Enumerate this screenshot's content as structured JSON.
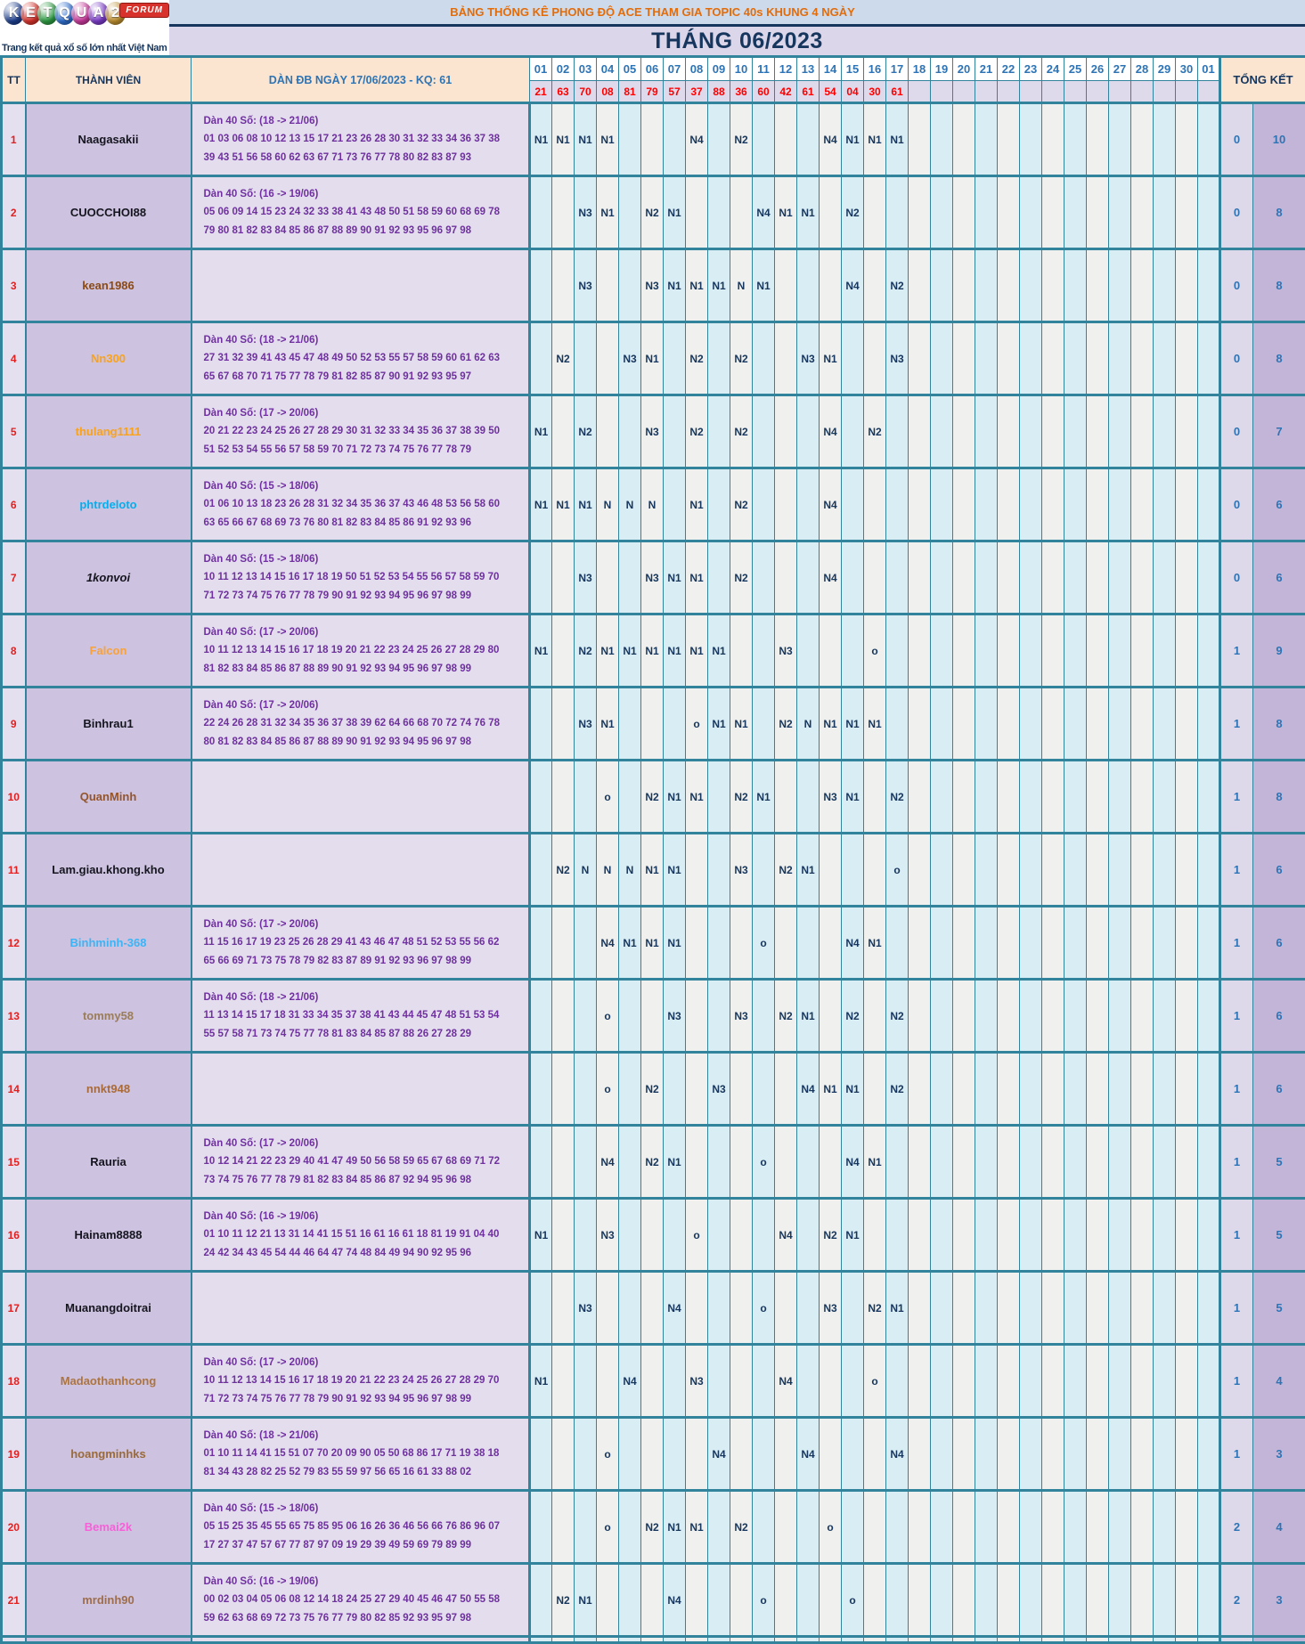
{
  "logo": {
    "letters": [
      {
        "ch": "K",
        "color": "#1d3f8e"
      },
      {
        "ch": "E",
        "color": "#d7332c"
      },
      {
        "ch": "T",
        "color": "#2e9b43"
      },
      {
        "ch": "Q",
        "color": "#2f6fd0"
      },
      {
        "ch": "U",
        "color": "#c8399b"
      },
      {
        "ch": "A",
        "color": "#7a3bc8"
      },
      {
        "ch": "2",
        "color": "#bd8f2e"
      }
    ],
    "badge": "FORUM",
    "tagline": "Trang kết quả xổ số lớn nhất Việt Nam"
  },
  "banner": {
    "text": "BẢNG THỐNG KÊ PHONG ĐỘ ACE THAM GIA TOPIC 40s KHUNG 4 NGÀY"
  },
  "month": {
    "text": "THÁNG 06/2023"
  },
  "headers": {
    "tt": "TT",
    "member": "THÀNH VIÊN",
    "dan": "DÀN ĐB NGÀY 17/06/2023 - KQ: 61",
    "total": "TỔNG KẾT"
  },
  "days": [
    "01",
    "02",
    "03",
    "04",
    "05",
    "06",
    "07",
    "08",
    "09",
    "10",
    "11",
    "12",
    "13",
    "14",
    "15",
    "16",
    "17",
    "18",
    "19",
    "20",
    "21",
    "22",
    "23",
    "24",
    "25",
    "26",
    "27",
    "28",
    "29",
    "30",
    "01"
  ],
  "kq_results": [
    "21",
    "63",
    "70",
    "08",
    "81",
    "79",
    "57",
    "37",
    "88",
    "36",
    "60",
    "42",
    "61",
    "54",
    "04",
    "30",
    "61"
  ],
  "colors": {
    "grid_teal": "#31849b",
    "banner_orange": "#e36c0a",
    "navy": "#17365d",
    "blue": "#2e74b5",
    "red": "#ff0000",
    "purple_text": "#7030a0"
  },
  "rows": [
    {
      "tt": "1",
      "name": "Naagasakii",
      "color": "#15151f",
      "italic": false,
      "dan": [
        "Dàn 40 Số: (18 -> 21/06)",
        "01 03 06 08 10 12 13 15 17 21 23 26 28 30 31 32 33 34 36 37 38",
        "39 43 51 56 58 60 62 63 67 71 73 76 77 78 80 82 83 87 93"
      ],
      "cells": {
        "1": "N1",
        "2": "N1",
        "3": "N1",
        "4": "N1",
        "8": "N4",
        "10": "N2",
        "14": "N4",
        "15": "N1",
        "16": "N1",
        "17": "N1"
      },
      "totals": [
        "0",
        "10"
      ]
    },
    {
      "tt": "2",
      "name": "CUOCCHOI88",
      "color": "#15151f",
      "italic": false,
      "dan": [
        "Dàn 40 Số: (16 -> 19/06)",
        "05 06 09 14 15 23 24 32 33 38 41 43 48 50 51 58 59 60 68 69 78",
        "79 80 81 82 83 84 85 86 87 88 89 90 91 92 93 95 96 97 98"
      ],
      "cells": {
        "3": "N3",
        "4": "N1",
        "6": "N2",
        "7": "N1",
        "11": "N4",
        "12": "N1",
        "13": "N1",
        "15": "N2"
      },
      "totals": [
        "0",
        "8"
      ]
    },
    {
      "tt": "3",
      "name": "kean1986",
      "color": "#8b4a16",
      "italic": false,
      "dan": [],
      "cells": {
        "3": "N3",
        "6": "N3",
        "7": "N1",
        "8": "N1",
        "9": "N1",
        "10": "N",
        "11": "N1",
        "15": "N4",
        "17": "N2"
      },
      "totals": [
        "0",
        "8"
      ]
    },
    {
      "tt": "4",
      "name": "Nn300",
      "color": "#f9a21a",
      "italic": false,
      "dan": [
        "Dàn 40 Số: (18 -> 21/06)",
        "27 31 32 39 41 43 45 47 48 49 50 52 53 55 57 58 59 60 61 62 63",
        "65 67 68 70 71 75 77 78 79 81 82 85 87 90 91 92 93 95 97"
      ],
      "cells": {
        "2": "N2",
        "5": "N3",
        "6": "N1",
        "8": "N2",
        "10": "N2",
        "13": "N3",
        "14": "N1",
        "17": "N3"
      },
      "totals": [
        "0",
        "8"
      ]
    },
    {
      "tt": "5",
      "name": "thulang1111",
      "color": "#f9a21a",
      "italic": false,
      "dan": [
        "Dàn 40 Số: (17 -> 20/06)",
        "20 21 22 23 24 25 26 27 28 29 30 31 32 33 34 35 36 37 38 39 50",
        "51 52 53 54 55 56 57 58 59 70 71 72 73 74 75 76 77 78 79"
      ],
      "cells": {
        "1": "N1",
        "3": "N2",
        "6": "N3",
        "8": "N2",
        "10": "N2",
        "14": "N4",
        "16": "N2"
      },
      "totals": [
        "0",
        "7"
      ]
    },
    {
      "tt": "6",
      "name": "phtrdeloto",
      "color": "#00b0f0",
      "italic": false,
      "dan": [
        "Dàn 40 Số: (15 -> 18/06)",
        "01 06 10 13 18 23 26 28 31 32 34 35 36 37 43 46 48 53 56 58 60",
        "63 65 66 67 68 69 73 76 80 81 82 83 84 85 86 91 92 93 96"
      ],
      "cells": {
        "1": "N1",
        "2": "N1",
        "3": "N1",
        "4": "N",
        "5": "N",
        "6": "N",
        "8": "N1",
        "10": "N2",
        "14": "N4"
      },
      "totals": [
        "0",
        "6"
      ]
    },
    {
      "tt": "7",
      "name": "1konvoi",
      "color": "#15151f",
      "italic": true,
      "dan": [
        "Dàn 40 Số: (15 -> 18/06)",
        "10 11 12 13 14 15 16 17 18 19 50 51 52 53 54 55 56 57 58 59 70",
        "71 72 73 74 75 76 77 78 79 90 91 92 93 94 95 96 97 98 99"
      ],
      "cells": {
        "3": "N3",
        "6": "N3",
        "7": "N1",
        "8": "N1",
        "10": "N2",
        "14": "N4"
      },
      "totals": [
        "0",
        "6"
      ]
    },
    {
      "tt": "8",
      "name": "Falcon",
      "color": "#f7a23c",
      "italic": false,
      "dan": [
        "Dàn 40 Số: (17 -> 20/06)",
        "10 11 12 13 14 15 16 17 18 19 20 21 22 23 24 25 26 27 28 29 80",
        "81 82 83 84 85 86 87 88 89 90 91 92 93 94 95 96 97 98 99"
      ],
      "cells": {
        "1": "N1",
        "3": "N2",
        "4": "N1",
        "5": "N1",
        "6": "N1",
        "7": "N1",
        "8": "N1",
        "9": "N1",
        "12": "N3",
        "16": "o"
      },
      "totals": [
        "1",
        "9"
      ]
    },
    {
      "tt": "9",
      "name": "Binhrau1",
      "color": "#15151f",
      "italic": false,
      "dan": [
        "Dàn 40 Số: (17 -> 20/06)",
        "22 24 26 28 31 32 34 35 36 37 38 39 62 64 66 68 70 72 74 76 78",
        "80 81 82 83 84 85 86 87 88 89 90 91 92 93 94 95 96 97 98"
      ],
      "cells": {
        "3": "N3",
        "4": "N1",
        "8": "o",
        "9": "N1",
        "10": "N1",
        "12": "N2",
        "13": "N",
        "14": "N1",
        "15": "N1",
        "16": "N1"
      },
      "totals": [
        "1",
        "8"
      ]
    },
    {
      "tt": "10",
      "name": "QuanMinh",
      "color": "#95552a",
      "italic": false,
      "dan": [],
      "cells": {
        "4": "o",
        "6": "N2",
        "7": "N1",
        "8": "N1",
        "10": "N2",
        "11": "N1",
        "14": "N3",
        "15": "N1",
        "17": "N2"
      },
      "totals": [
        "1",
        "8"
      ]
    },
    {
      "tt": "11",
      "name": "Lam.giau.khong.kho",
      "color": "#15151f",
      "italic": false,
      "dan": [],
      "cells": {
        "2": "N2",
        "3": "N",
        "4": "N",
        "5": "N",
        "6": "N1",
        "7": "N1",
        "10": "N3",
        "12": "N2",
        "13": "N1",
        "17": "o"
      },
      "totals": [
        "1",
        "6"
      ]
    },
    {
      "tt": "12",
      "name": "Binhminh-368",
      "color": "#3ab5f7",
      "italic": false,
      "dan": [
        "Dàn 40 Số: (17 -> 20/06)",
        "11 15 16 17 19 23 25 26 28 29 41 43 46 47 48 51 52 53 55 56 62",
        "65 66 69 71 73 75 78 79 82 83 87 89 91 92 93 96 97 98 99"
      ],
      "cells": {
        "4": "N4",
        "5": "N1",
        "6": "N1",
        "7": "N1",
        "11": "o",
        "15": "N4",
        "16": "N1"
      },
      "totals": [
        "1",
        "6"
      ]
    },
    {
      "tt": "13",
      "name": "tommy58",
      "color": "#9b7d59",
      "italic": false,
      "dan": [
        "Dàn 40 Số: (18 -> 21/06)",
        "11 13 14 15 17 18 31 33 34 35 37 38 41 43 44 45 47 48 51 53 54",
        "55 57 58 71 73 74 75 77 78 81 83 84 85 87 88 26 27 28 29"
      ],
      "cells": {
        "4": "o",
        "7": "N3",
        "10": "N3",
        "12": "N2",
        "13": "N1",
        "15": "N2",
        "17": "N2"
      },
      "totals": [
        "1",
        "6"
      ]
    },
    {
      "tt": "14",
      "name": "nnkt948",
      "color": "#aa6a38",
      "italic": false,
      "dan": [],
      "cells": {
        "4": "o",
        "6": "N2",
        "9": "N3",
        "13": "N4",
        "14": "N1",
        "15": "N1",
        "17": "N2"
      },
      "totals": [
        "1",
        "6"
      ]
    },
    {
      "tt": "15",
      "name": "Rauria",
      "color": "#15151f",
      "italic": false,
      "dan": [
        "Dàn 40 Số: (17 -> 20/06)",
        "10 12 14 21 22 23 29 40 41 47 49 50 56 58 59 65 67 68 69 71 72",
        "73 74 75 76 77 78 79 81 82 83 84 85 86 87 92 94 95 96 98"
      ],
      "cells": {
        "4": "N4",
        "6": "N2",
        "7": "N1",
        "11": "o",
        "15": "N4",
        "16": "N1"
      },
      "totals": [
        "1",
        "5"
      ]
    },
    {
      "tt": "16",
      "name": "Hainam8888",
      "color": "#15151f",
      "italic": false,
      "dan": [
        "Dàn 40 Số: (16 -> 19/06)",
        "01 10 11 12 21 13 31 14 41 15 51 16 61 16 61 18 81 19 91 04 40",
        "24 42 34 43 45 54 44 46 64 47 74 48 84 49 94 90 92 95 96"
      ],
      "cells": {
        "1": "N1",
        "4": "N3",
        "8": "o",
        "12": "N4",
        "14": "N2",
        "15": "N1"
      },
      "totals": [
        "1",
        "5"
      ]
    },
    {
      "tt": "17",
      "name": "Muanangdoitrai",
      "color": "#15151f",
      "italic": false,
      "dan": [],
      "cells": {
        "3": "N3",
        "7": "N4",
        "11": "o",
        "14": "N3",
        "16": "N2",
        "17": "N1"
      },
      "totals": [
        "1",
        "5"
      ]
    },
    {
      "tt": "18",
      "name": "Madaothanhcong",
      "color": "#ad7440",
      "italic": false,
      "dan": [
        "Dàn 40 Số: (17 -> 20/06)",
        "10 11 12 13 14 15 16 17 18 19 20 21 22 23 24 25 26 27 28 29 70",
        "71 72 73 74 75 76 77 78 79 90 91 92 93 94 95 96 97 98 99"
      ],
      "cells": {
        "1": "N1",
        "5": "N4",
        "8": "N3",
        "12": "N4",
        "16": "o"
      },
      "totals": [
        "1",
        "4"
      ]
    },
    {
      "tt": "19",
      "name": "hoangminhks",
      "color": "#9a6a3a",
      "italic": false,
      "dan": [
        "Dàn 40 Số: (18 -> 21/06)",
        "01 10 11 14 41 15 51 07 70 20 09 90 05 50 68 86 17 71 19 38 18",
        "81 34 43 28 82 25 52 79 83 55 59 97 56 65 16 61 33 88 02"
      ],
      "cells": {
        "4": "o",
        "9": "N4",
        "13": "N4",
        "17": "N4"
      },
      "totals": [
        "1",
        "3"
      ]
    },
    {
      "tt": "20",
      "name": "Bemai2k",
      "color": "#f760d8",
      "italic": false,
      "dan": [
        "Dàn 40 Số: (15 -> 18/06)",
        "05 15 25 35 45 55 65 75 85 95 06 16 26 36 46 56 66 76 86 96 07",
        "17 27 37 47 57 67 77 87 97 09 19 29 39 49 59 69 79 89 99"
      ],
      "cells": {
        "4": "o",
        "6": "N2",
        "7": "N1",
        "8": "N1",
        "10": "N2",
        "14": "o"
      },
      "totals": [
        "2",
        "4"
      ]
    },
    {
      "tt": "21",
      "name": "mrdinh90",
      "color": "#9d6d4d",
      "italic": false,
      "dan": [
        "Dàn 40 Số: (16 -> 19/06)",
        "00 02 03 04 05 06 08 12 14 18 24 25 27 29 40 45 46 47 50 55 58",
        "59 62 63 68 69 72 73 75 76 77 79 80 82 85 92 93 95 97 98"
      ],
      "cells": {
        "2": "N2",
        "3": "N1",
        "7": "N4",
        "11": "o",
        "15": "o"
      },
      "totals": [
        "2",
        "3"
      ]
    }
  ]
}
